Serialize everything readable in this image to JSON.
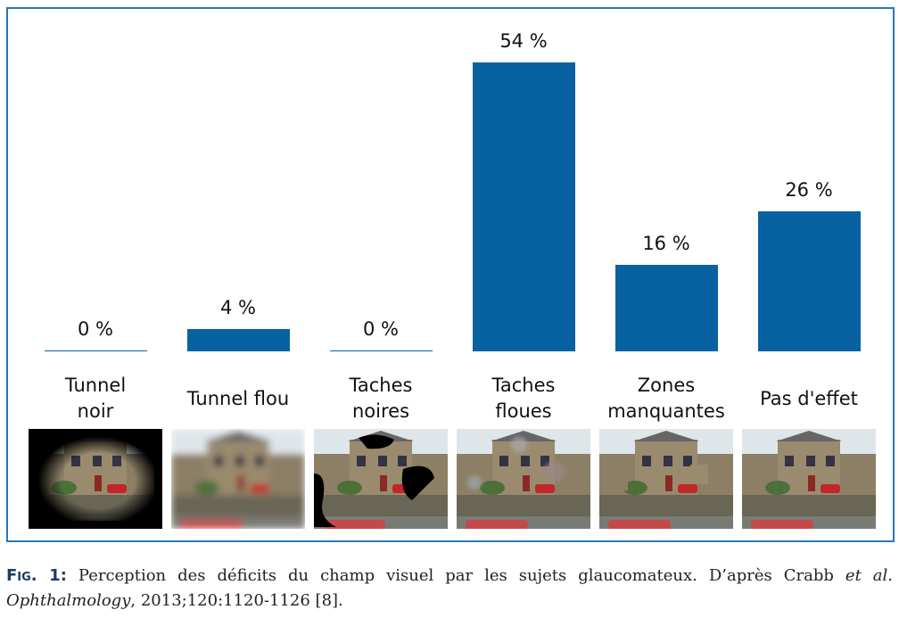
{
  "chart_data": {
    "type": "bar",
    "categories": [
      "Tunnel\nnoir",
      "Tunnel flou",
      "Taches\nnoires",
      "Taches\nfloues",
      "Zones\nmanquantes",
      "Pas d'effet"
    ],
    "values": [
      0,
      4,
      0,
      54,
      16,
      26
    ],
    "value_labels": [
      "0 %",
      "4 %",
      "0 %",
      "54 %",
      "16 %",
      "26 %"
    ],
    "color": "#0862a1",
    "ylim": [
      0,
      60
    ]
  },
  "caption": {
    "label": "Fig. 1:",
    "parts": [
      " Perception des déficits du champ visuel par les sujets glaucomateux. D’après Crabb ",
      "et al.",
      " ",
      "Ophthalmology",
      ", 2013;120:1120-1126 [8]."
    ]
  }
}
